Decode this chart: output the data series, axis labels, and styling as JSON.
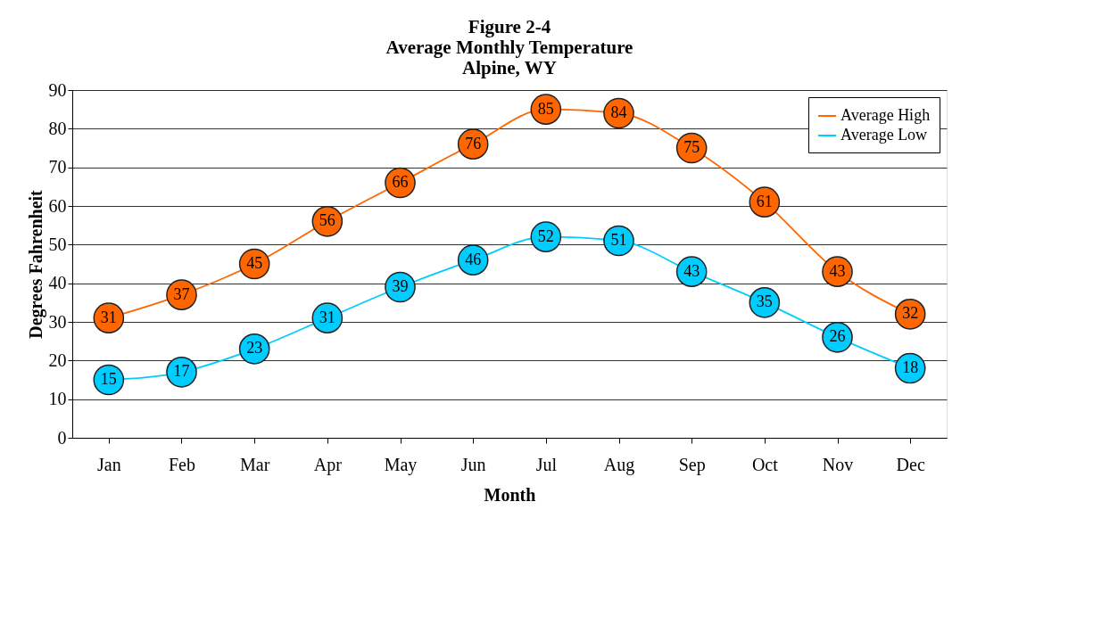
{
  "chart_data": {
    "type": "line",
    "title": [
      "Figure 2-4",
      "Average Monthly Temperature",
      "Alpine, WY"
    ],
    "xlabel": "Month",
    "ylabel": "Degrees Fahrenheit",
    "categories": [
      "Jan",
      "Feb",
      "Mar",
      "Apr",
      "May",
      "Jun",
      "Jul",
      "Aug",
      "Sep",
      "Oct",
      "Nov",
      "Dec"
    ],
    "series": [
      {
        "name": "Average High",
        "color": "#ff6600",
        "values": [
          31,
          37,
          45,
          56,
          66,
          76,
          85,
          84,
          75,
          61,
          43,
          32
        ]
      },
      {
        "name": "Average Low",
        "color": "#00ccff",
        "values": [
          15,
          17,
          23,
          31,
          39,
          46,
          52,
          51,
          43,
          35,
          26,
          18
        ]
      }
    ],
    "ylim": [
      0,
      90
    ],
    "yticks": [
      0,
      10,
      20,
      30,
      40,
      50,
      60,
      70,
      80,
      90
    ],
    "grid": "y",
    "legend": "top right",
    "marker": "circle",
    "line_style": "solid",
    "data_labels": true
  }
}
